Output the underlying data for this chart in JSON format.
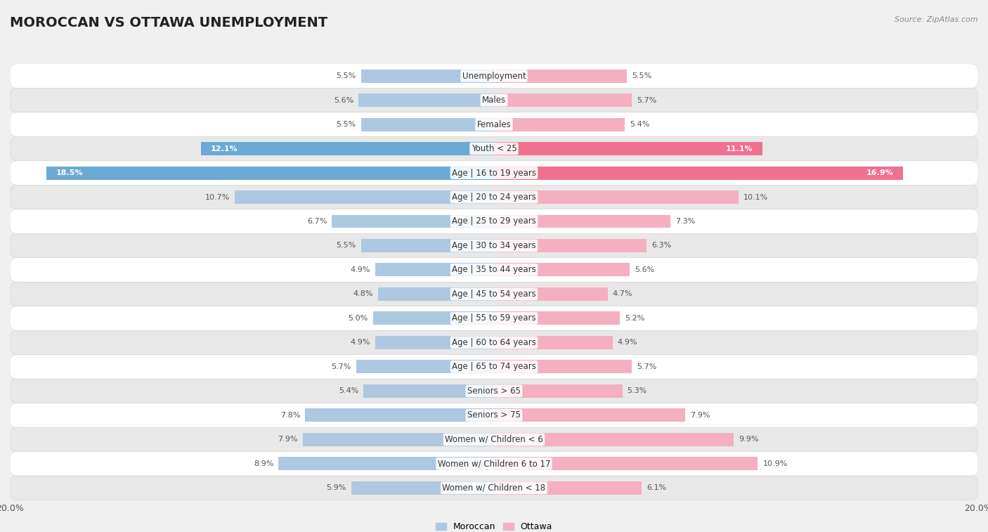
{
  "title": "MOROCCAN VS OTTAWA UNEMPLOYMENT",
  "source": "Source: ZipAtlas.com",
  "categories": [
    "Unemployment",
    "Males",
    "Females",
    "Youth < 25",
    "Age | 16 to 19 years",
    "Age | 20 to 24 years",
    "Age | 25 to 29 years",
    "Age | 30 to 34 years",
    "Age | 35 to 44 years",
    "Age | 45 to 54 years",
    "Age | 55 to 59 years",
    "Age | 60 to 64 years",
    "Age | 65 to 74 years",
    "Seniors > 65",
    "Seniors > 75",
    "Women w/ Children < 6",
    "Women w/ Children 6 to 17",
    "Women w/ Children < 18"
  ],
  "moroccan": [
    5.5,
    5.6,
    5.5,
    12.1,
    18.5,
    10.7,
    6.7,
    5.5,
    4.9,
    4.8,
    5.0,
    4.9,
    5.7,
    5.4,
    7.8,
    7.9,
    8.9,
    5.9
  ],
  "ottawa": [
    5.5,
    5.7,
    5.4,
    11.1,
    16.9,
    10.1,
    7.3,
    6.3,
    5.6,
    4.7,
    5.2,
    4.9,
    5.7,
    5.3,
    7.9,
    9.9,
    10.9,
    6.1
  ],
  "moroccan_color": "#adc8e0",
  "ottawa_color": "#f4afc0",
  "moroccan_highlight_color": "#6aaad4",
  "ottawa_highlight_color": "#f07090",
  "axis_max": 20.0,
  "bar_height": 0.55,
  "bg_color": "#f0f0f0",
  "row_color_light": "#ffffff",
  "row_color_dark": "#e8e8e8",
  "label_fontsize": 8.5,
  "title_fontsize": 14,
  "value_fontsize": 8,
  "legend_fontsize": 9
}
